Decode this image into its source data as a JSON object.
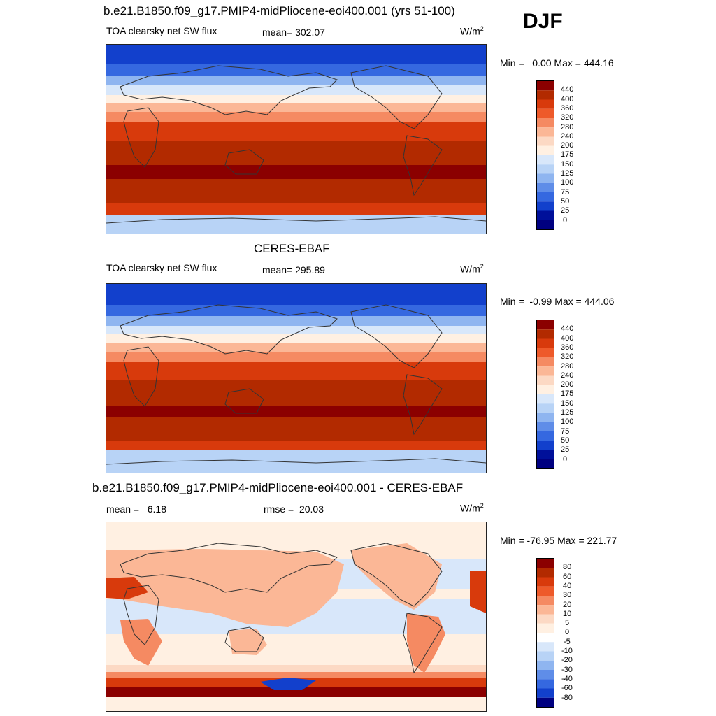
{
  "season": "DJF",
  "panels": [
    {
      "title": "b.e21.B1850.f09_g17.PMIP4-midPliocene-eoi400.001 (yrs 51-100)",
      "left_label": "TOA clearsky net SW flux",
      "mean_text": "mean= 302.07",
      "units_base": "W/m",
      "units_exp": "2",
      "minmax": "Min =   0.00 Max = 444.16",
      "colorbar_labels": [
        "440",
        "400",
        "360",
        "320",
        "280",
        "240",
        "200",
        "175",
        "150",
        "125",
        "100",
        "75",
        "50",
        "25",
        "0"
      ]
    },
    {
      "title": "CERES-EBAF",
      "left_label": "TOA clearsky net SW flux",
      "mean_text": "mean= 295.89",
      "units_base": "W/m",
      "units_exp": "2",
      "minmax": "Min =  -0.99 Max = 444.06",
      "colorbar_labels": [
        "440",
        "400",
        "360",
        "320",
        "280",
        "240",
        "200",
        "175",
        "150",
        "125",
        "100",
        "75",
        "50",
        "25",
        "0"
      ]
    },
    {
      "title": "b.e21.B1850.f09_g17.PMIP4-midPliocene-eoi400.001 - CERES-EBAF",
      "left_label": "mean =   6.18",
      "mean_text": "rmse =  20.03",
      "units_base": "W/m",
      "units_exp": "2",
      "minmax": "Min = -76.95 Max = 221.77",
      "colorbar_labels": [
        "80",
        "60",
        "40",
        "30",
        "20",
        "10",
        "5",
        "0",
        "-5",
        "-10",
        "-20",
        "-30",
        "-40",
        "-60",
        "-80"
      ]
    }
  ],
  "colors": {
    "flux_scale": [
      "#8b0000",
      "#b22a00",
      "#d83a0c",
      "#ee5a2a",
      "#f58a62",
      "#fbb796",
      "#fcd9c4",
      "#fff0e2",
      "#d8e7fa",
      "#b8d3f6",
      "#8fb5f0",
      "#5f8de8",
      "#3568e0",
      "#1240cc",
      "#00109a",
      "#000080"
    ],
    "diff_scale": [
      "#8b0000",
      "#b22a00",
      "#d83a0c",
      "#ee5a2a",
      "#f58a62",
      "#fbb796",
      "#fcd9c4",
      "#fff0e2",
      "#ffffff",
      "#d8e7fa",
      "#b8d3f6",
      "#8fb5f0",
      "#5f8de8",
      "#3568e0",
      "#1240cc",
      "#000080"
    ]
  }
}
